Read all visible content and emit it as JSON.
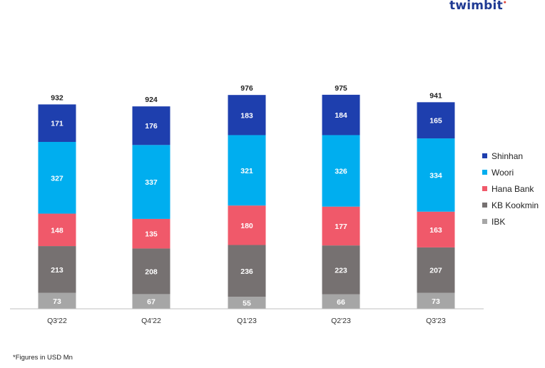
{
  "brand": {
    "name": "twimbit",
    "dot": "•"
  },
  "footnote": "*Figures in USD Mn",
  "chart_data": {
    "type": "bar",
    "stacked": true,
    "title": "",
    "xlabel": "",
    "ylabel": "",
    "ylim": [
      0,
      1000
    ],
    "grid": false,
    "legend_position": "right",
    "categories": [
      "Q3'22",
      "Q4'22",
      "Q1'23",
      "Q2'23",
      "Q3'23"
    ],
    "series": [
      {
        "name": "IBK",
        "color": "#a6a6a6",
        "values": [
          73,
          67,
          55,
          66,
          73
        ]
      },
      {
        "name": "KB Kookmin",
        "color": "#767171",
        "values": [
          213,
          208,
          236,
          223,
          207
        ]
      },
      {
        "name": "Hana Bank",
        "color": "#f0596a",
        "values": [
          148,
          135,
          180,
          177,
          163
        ]
      },
      {
        "name": "Woori",
        "color": "#00aeef",
        "values": [
          327,
          337,
          321,
          326,
          334
        ]
      },
      {
        "name": "Shinhan",
        "color": "#1e3fae",
        "values": [
          171,
          176,
          183,
          184,
          165
        ]
      }
    ],
    "totals": [
      932,
      924,
      976,
      975,
      941
    ],
    "legend_order": [
      "Shinhan",
      "Woori",
      "Hana Bank",
      "KB Kookmin",
      "IBK"
    ]
  }
}
